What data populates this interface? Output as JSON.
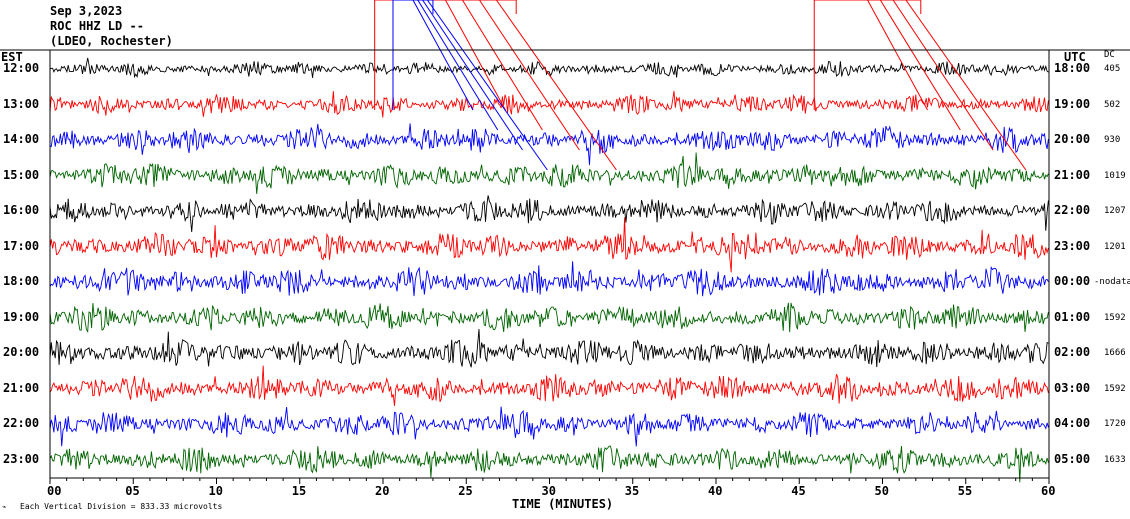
{
  "header": {
    "date": "Sep 3,2023",
    "station": "ROC HHZ LD --",
    "network": "(LDEO, Rochester)"
  },
  "labels": {
    "left_zone": "EST",
    "right_zone": "UTC",
    "dc_header": "DC"
  },
  "footer": {
    "scale_note": "Each Vertical Division = 833.33 microvolts"
  },
  "chart_data": {
    "type": "line",
    "title": "",
    "xlabel": "TIME (MINUTES)",
    "ylabel": "",
    "xlim": [
      0,
      60
    ],
    "x_ticks": [
      "00",
      "05",
      "10",
      "15",
      "20",
      "25",
      "30",
      "35",
      "40",
      "45",
      "50",
      "55",
      "60"
    ],
    "y_ticks_left": [
      "12:00",
      "13:00",
      "14:00",
      "15:00",
      "16:00",
      "17:00",
      "18:00",
      "19:00",
      "20:00",
      "21:00",
      "22:00",
      "23:00"
    ],
    "y_ticks_right": [
      "18:00",
      "19:00",
      "20:00",
      "21:00",
      "22:00",
      "23:00",
      "00:00",
      "01:00",
      "02:00",
      "03:00",
      "04:00",
      "05:00"
    ],
    "dc_offsets": [
      "405",
      "502",
      "930",
      "1019",
      "1207",
      "1201",
      "-nodata",
      "1592",
      "1666",
      "1592",
      "1720",
      "1633"
    ],
    "trace_colors": [
      "#000000",
      "#ff0000",
      "#0000ff",
      "#006400"
    ],
    "grid": false,
    "series": [
      {
        "hour": "12:00",
        "color": "#000000",
        "amplitude": 14,
        "dc": "405"
      },
      {
        "hour": "13:00",
        "color": "#ff0000",
        "amplitude": 18,
        "dc": "502"
      },
      {
        "hour": "14:00",
        "color": "#0000ff",
        "amplitude": 24,
        "dc": "930"
      },
      {
        "hour": "15:00",
        "color": "#006400",
        "amplitude": 24,
        "dc": "1019"
      },
      {
        "hour": "16:00",
        "color": "#000000",
        "amplitude": 24,
        "dc": "1207"
      },
      {
        "hour": "17:00",
        "color": "#ff0000",
        "amplitude": 26,
        "dc": "1201"
      },
      {
        "hour": "18:00",
        "color": "#0000ff",
        "amplitude": 26,
        "dc": "-nodata"
      },
      {
        "hour": "19:00",
        "color": "#006400",
        "amplitude": 26,
        "dc": "1592"
      },
      {
        "hour": "20:00",
        "color": "#000000",
        "amplitude": 26,
        "dc": "1666"
      },
      {
        "hour": "21:00",
        "color": "#ff0000",
        "amplitude": 26,
        "dc": "1592"
      },
      {
        "hour": "22:00",
        "color": "#0000ff",
        "amplitude": 24,
        "dc": "1720"
      },
      {
        "hour": "23:00",
        "color": "#006400",
        "amplitude": 24,
        "dc": "1633"
      }
    ],
    "event_markers": [
      {
        "color": "#ff0000",
        "x_start": 19.5,
        "x_end": 28.0
      },
      {
        "color": "#0000ff",
        "x_start": 20.6,
        "x_end": 23.0
      },
      {
        "color": "#ff0000",
        "x_start": 45.9,
        "x_end": 52.3
      }
    ]
  }
}
